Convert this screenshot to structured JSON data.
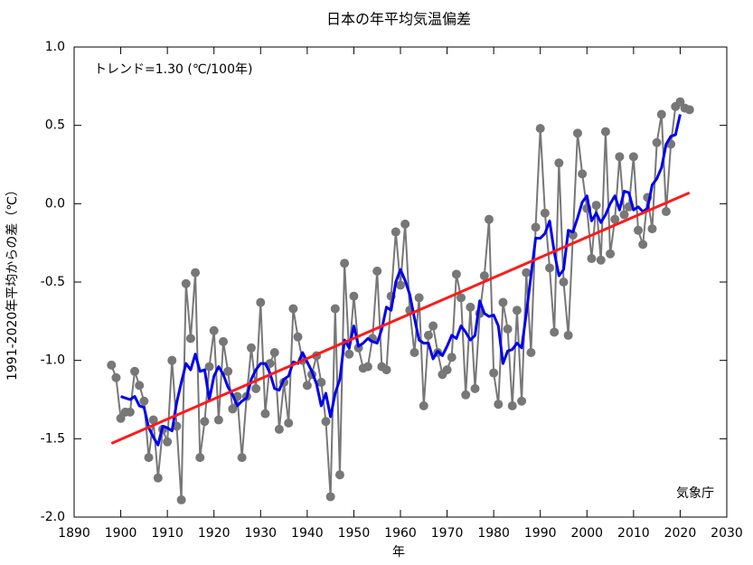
{
  "chart_data": {
    "type": "line",
    "title": "日本の年平均気温偏差",
    "x_label": "年",
    "y_label": "1991-2020年平均からの差（℃）",
    "annotation": "トレンド=1.30 (℃/100年)",
    "credit": "気象庁",
    "xlim": [
      1890,
      2030
    ],
    "xticks": [
      1890,
      1900,
      1910,
      1920,
      1930,
      1940,
      1950,
      1960,
      1970,
      1980,
      1990,
      2000,
      2010,
      2020,
      2030
    ],
    "ylim": [
      -2.0,
      1.0
    ],
    "yticks": [
      {
        "value": -2.0,
        "label": "-2.0"
      },
      {
        "value": -1.5,
        "label": "-1.5"
      },
      {
        "value": -1.0,
        "label": "-1.0"
      },
      {
        "value": -0.5,
        "label": "-0.5"
      },
      {
        "value": 0.0,
        "label": "0.0"
      },
      {
        "value": 0.5,
        "label": "0.5"
      },
      {
        "value": 1.0,
        "label": "1.0"
      }
    ],
    "x": [
      1898,
      1899,
      1900,
      1901,
      1902,
      1903,
      1904,
      1905,
      1906,
      1907,
      1908,
      1909,
      1910,
      1911,
      1912,
      1913,
      1914,
      1915,
      1916,
      1917,
      1918,
      1919,
      1920,
      1921,
      1922,
      1923,
      1924,
      1925,
      1926,
      1927,
      1928,
      1929,
      1930,
      1931,
      1932,
      1933,
      1934,
      1935,
      1936,
      1937,
      1938,
      1939,
      1940,
      1941,
      1942,
      1943,
      1944,
      1945,
      1946,
      1947,
      1948,
      1949,
      1950,
      1951,
      1952,
      1953,
      1954,
      1955,
      1956,
      1957,
      1958,
      1959,
      1960,
      1961,
      1962,
      1963,
      1964,
      1965,
      1966,
      1967,
      1968,
      1969,
      1970,
      1971,
      1972,
      1973,
      1974,
      1975,
      1976,
      1977,
      1978,
      1979,
      1980,
      1981,
      1982,
      1983,
      1984,
      1985,
      1986,
      1987,
      1988,
      1989,
      1990,
      1991,
      1992,
      1993,
      1994,
      1995,
      1996,
      1997,
      1998,
      1999,
      2000,
      2001,
      2002,
      2003,
      2004,
      2005,
      2006,
      2007,
      2008,
      2009,
      2010,
      2011,
      2012,
      2013,
      2014,
      2015,
      2016,
      2017,
      2018,
      2019,
      2020,
      2021,
      2022
    ],
    "series": [
      {
        "color": "#777777",
        "marker": true,
        "values": [
          -1.03,
          -1.11,
          -1.37,
          -1.33,
          -1.33,
          -1.07,
          -1.16,
          -1.26,
          -1.62,
          -1.38,
          -1.75,
          -1.44,
          -1.52,
          -1.0,
          -1.42,
          -1.89,
          -0.51,
          -0.86,
          -0.44,
          -1.62,
          -1.39,
          -1.04,
          -0.81,
          -1.38,
          -0.88,
          -1.07,
          -1.31,
          -1.23,
          -1.62,
          -1.23,
          -0.92,
          -1.18,
          -0.63,
          -1.34,
          -1.02,
          -0.95,
          -1.44,
          -1.14,
          -1.4,
          -0.67,
          -0.85,
          -1.0,
          -1.16,
          -1.09,
          -0.97,
          -1.14,
          -1.39,
          -1.87,
          -0.67,
          -1.73,
          -0.38,
          -0.96,
          -0.59,
          -0.92,
          -1.05,
          -1.04,
          -0.86,
          -0.43,
          -1.04,
          -1.06,
          -0.59,
          -0.18,
          -0.52,
          -0.13,
          -0.68,
          -0.95,
          -0.6,
          -1.29,
          -0.84,
          -0.78,
          -0.95,
          -1.09,
          -1.06,
          -0.98,
          -0.45,
          -0.6,
          -1.22,
          -0.66,
          -1.18,
          -0.7,
          -0.46,
          -0.1,
          -1.08,
          -1.28,
          -0.63,
          -0.8,
          -1.29,
          -0.68,
          -1.26,
          -0.44,
          -0.95,
          -0.15,
          0.48,
          -0.06,
          -0.41,
          -0.82,
          0.26,
          -0.5,
          -0.84,
          -0.2,
          0.45,
          0.19,
          -0.03,
          -0.35,
          -0.01,
          -0.36,
          0.46,
          -0.32,
          -0.1,
          0.3,
          -0.07,
          -0.02,
          0.3,
          -0.17,
          -0.26,
          0.04,
          -0.16,
          0.39,
          0.57,
          -0.05,
          0.38,
          0.62,
          0.65,
          0.61,
          0.6
        ]
      },
      {
        "color": "#0000ee",
        "values": [
          null,
          null,
          -1.23,
          -1.24,
          -1.25,
          -1.23,
          -1.29,
          -1.3,
          -1.43,
          -1.49,
          -1.54,
          -1.42,
          -1.43,
          -1.45,
          -1.27,
          -1.14,
          -1.02,
          -1.06,
          -0.96,
          -1.07,
          -1.06,
          -1.25,
          -1.1,
          -1.04,
          -1.09,
          -1.17,
          -1.22,
          -1.29,
          -1.26,
          -1.24,
          -1.12,
          -1.06,
          -1.02,
          -1.02,
          -1.08,
          -1.18,
          -1.19,
          -1.12,
          -1.1,
          -1.01,
          -1.02,
          -0.95,
          -1.01,
          -1.07,
          -1.15,
          -1.29,
          -1.21,
          -1.36,
          -1.21,
          -1.12,
          -0.87,
          -0.92,
          -0.78,
          -0.91,
          -0.89,
          -0.86,
          -0.88,
          -0.89,
          -0.8,
          -0.66,
          -0.68,
          -0.5,
          -0.42,
          -0.49,
          -0.58,
          -0.73,
          -0.87,
          -0.89,
          -0.89,
          -0.99,
          -0.94,
          -0.97,
          -0.91,
          -0.84,
          -0.86,
          -0.78,
          -0.82,
          -0.87,
          -0.84,
          -0.62,
          -0.7,
          -0.72,
          -0.71,
          -0.78,
          -1.02,
          -0.94,
          -0.93,
          -0.89,
          -0.92,
          -0.7,
          -0.46,
          -0.22,
          -0.22,
          -0.19,
          -0.11,
          -0.31,
          -0.46,
          -0.42,
          -0.17,
          -0.18,
          -0.09,
          0.01,
          0.05,
          -0.11,
          -0.06,
          -0.12,
          -0.07,
          0.0,
          0.05,
          -0.04,
          0.08,
          0.07,
          -0.04,
          -0.02,
          -0.05,
          -0.03,
          0.12,
          0.16,
          0.23,
          0.38,
          0.43,
          0.44,
          0.57,
          null,
          null
        ]
      },
      {
        "color": "#ff1a1a",
        "x": [
          1898,
          2022
        ],
        "values": [
          -1.53,
          0.07
        ]
      }
    ]
  }
}
